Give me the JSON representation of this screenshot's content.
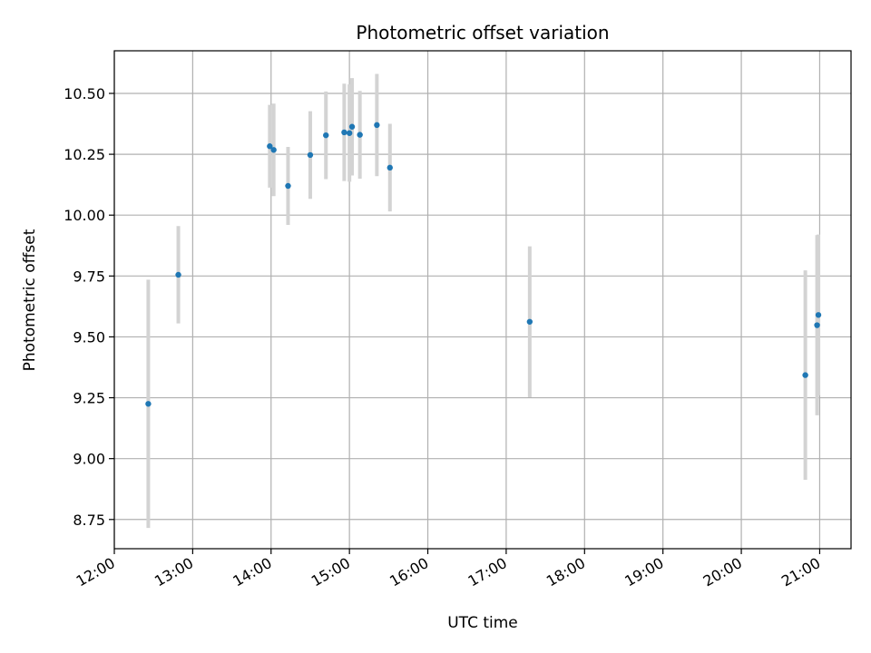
{
  "chart_data": {
    "type": "scatter",
    "title": "Photometric offset variation",
    "xlabel": "UTC time",
    "ylabel": "Photometric offset",
    "xlim": [
      "12:00",
      "21:24"
    ],
    "ylim": [
      8.63,
      10.675
    ],
    "grid": true,
    "x_ticks": [
      "12:00",
      "13:00",
      "14:00",
      "15:00",
      "16:00",
      "17:00",
      "18:00",
      "19:00",
      "20:00",
      "21:00"
    ],
    "y_ticks": [
      "8.75",
      "9.00",
      "9.25",
      "9.50",
      "9.75",
      "10.00",
      "10.25",
      "10.50"
    ],
    "series": [
      {
        "color": "#1f77b4",
        "error_color": "#d3d3d3",
        "points": [
          {
            "x": "12:26",
            "y": 9.225,
            "err": 0.51
          },
          {
            "x": "12:49",
            "y": 9.755,
            "err": 0.2
          },
          {
            "x": "13:59",
            "y": 10.283,
            "err": 0.17
          },
          {
            "x": "14:02",
            "y": 10.268,
            "err": 0.19
          },
          {
            "x": "14:13",
            "y": 10.12,
            "err": 0.16
          },
          {
            "x": "14:30",
            "y": 10.247,
            "err": 0.18
          },
          {
            "x": "14:42",
            "y": 10.328,
            "err": 0.18
          },
          {
            "x": "14:56",
            "y": 10.34,
            "err": 0.2
          },
          {
            "x": "15:00",
            "y": 10.337,
            "err": 0.2
          },
          {
            "x": "15:02",
            "y": 10.363,
            "err": 0.2
          },
          {
            "x": "15:08",
            "y": 10.33,
            "err": 0.18
          },
          {
            "x": "15:21",
            "y": 10.37,
            "err": 0.21
          },
          {
            "x": "15:31",
            "y": 10.195,
            "err": 0.18
          },
          {
            "x": "17:18",
            "y": 9.562,
            "err": 0.31
          },
          {
            "x": "20:49",
            "y": 9.343,
            "err": 0.43
          },
          {
            "x": "20:58",
            "y": 9.548,
            "err": 0.37
          },
          {
            "x": "20:59",
            "y": 9.59,
            "err": 0.33
          }
        ]
      }
    ]
  }
}
